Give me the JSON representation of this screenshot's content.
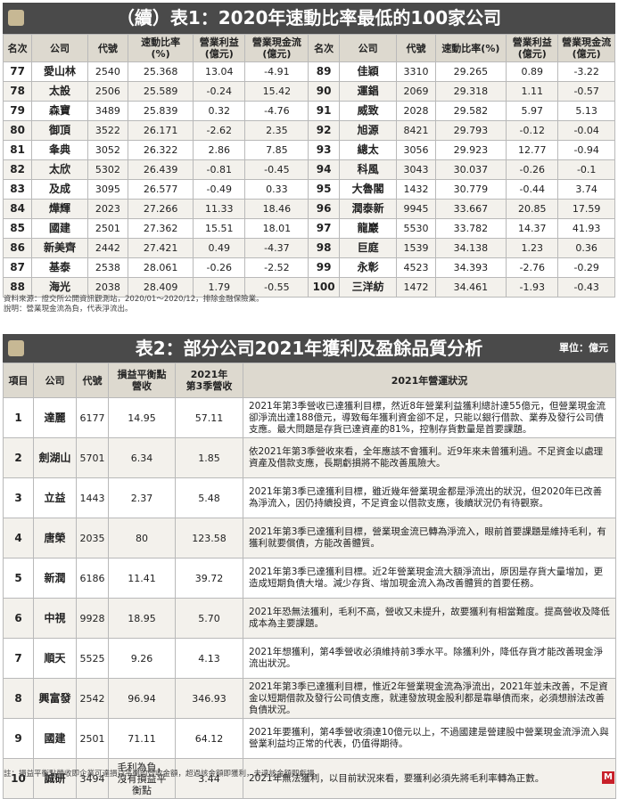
{
  "table1": {
    "title": "（續）表1：2020年速動比率最低的100家公司",
    "headers": [
      "名次",
      "公司",
      "代號",
      "速動比率\n(%)",
      "營業利益\n(億元)",
      "營業現金流\n(億元)",
      "名次",
      "公司",
      "代號",
      "速動比率(%)",
      "營業利益\n(億元)",
      "營業現金流\n(億元)"
    ],
    "rows": [
      [
        "77",
        "愛山林",
        "2540",
        "25.368",
        "13.04",
        "-4.91",
        "89",
        "佳穎",
        "3310",
        "29.265",
        "0.89",
        "-3.22"
      ],
      [
        "78",
        "太設",
        "2506",
        "25.589",
        "-0.24",
        "15.42",
        "90",
        "運錩",
        "2069",
        "29.318",
        "1.11",
        "-0.57"
      ],
      [
        "79",
        "森寶",
        "3489",
        "25.839",
        "0.32",
        "-4.76",
        "91",
        "威致",
        "2028",
        "29.582",
        "5.97",
        "5.13"
      ],
      [
        "80",
        "御頂",
        "3522",
        "26.171",
        "-2.62",
        "2.35",
        "92",
        "旭源",
        "8421",
        "29.793",
        "-0.12",
        "-0.04"
      ],
      [
        "81",
        "夆典",
        "3052",
        "26.322",
        "2.86",
        "7.85",
        "93",
        "總太",
        "3056",
        "29.923",
        "12.77",
        "-0.94"
      ],
      [
        "82",
        "太欣",
        "5302",
        "26.439",
        "-0.81",
        "-0.45",
        "94",
        "科風",
        "3043",
        "30.037",
        "-0.26",
        "-0.1"
      ],
      [
        "83",
        "及成",
        "3095",
        "26.577",
        "-0.49",
        "0.33",
        "95",
        "大魯閣",
        "1432",
        "30.779",
        "-0.44",
        "3.74"
      ],
      [
        "84",
        "燁輝",
        "2023",
        "27.266",
        "11.33",
        "18.46",
        "96",
        "潤泰新",
        "9945",
        "33.667",
        "20.85",
        "17.59"
      ],
      [
        "85",
        "國建",
        "2501",
        "27.362",
        "15.51",
        "18.01",
        "97",
        "龍巖",
        "5530",
        "33.782",
        "14.37",
        "41.93"
      ],
      [
        "86",
        "新美齊",
        "2442",
        "27.421",
        "0.49",
        "-4.37",
        "98",
        "巨庭",
        "1539",
        "34.138",
        "1.23",
        "0.36"
      ],
      [
        "87",
        "基泰",
        "2538",
        "28.061",
        "-0.26",
        "-2.52",
        "99",
        "永彰",
        "4523",
        "34.393",
        "-2.76",
        "-0.29"
      ],
      [
        "88",
        "海光",
        "2038",
        "28.409",
        "1.79",
        "-0.55",
        "100",
        "三洋紡",
        "1472",
        "34.461",
        "-1.93",
        "-0.43"
      ]
    ],
    "source": "資料來源：證交所公開資訊觀測站，2020/01～2020/12，排除金融保險業。",
    "explain": "說明：營業現金流為負，代表淨流出。"
  },
  "table2": {
    "title": "表2：部分公司2021年獲利及盈餘品質分析",
    "unit": "單位：億元",
    "headers": [
      "項目",
      "公司",
      "代號",
      "損益平衡點\n營收",
      "2021年\n第3季營收",
      "2021年營運狀況"
    ],
    "rows": [
      [
        "1",
        "達麗",
        "6177",
        "14.95",
        "57.11",
        "2021年第3季營收已達獲利目標，然近8年營業利益獲利總計達55億元，但營業現金流卻淨流出達188億元，導致每年獲利資金卻不足，只能以銀行借款、業券及發行公司債支應。最大問題是存貨已達資產的81%，控制存貨數量是首要課題。"
      ],
      [
        "2",
        "劍湖山",
        "5701",
        "6.34",
        "1.85",
        "依2021年第3季營收來看，全年應該不會獲利。近9年來未曾獲利過。不足資金以處理資產及借款支應，長期虧損將不能改善風險大。"
      ],
      [
        "3",
        "立益",
        "1443",
        "2.37",
        "5.48",
        "2021年第3季已達獲利目標，雖近幾年營業現金都是淨流出的狀況，但2020年已改善為淨流入，因仍持續投資，不足資金以借款支應，後續狀況仍有待觀察。"
      ],
      [
        "4",
        "唐榮",
        "2035",
        "80",
        "123.58",
        "2021年第3季已達獲利目標，營業現金流已轉為淨流入，眼前首要課題是維持毛利，有獲利就要償債，方能改善體質。"
      ],
      [
        "5",
        "新潤",
        "6186",
        "11.41",
        "39.72",
        "2021年第3季已達獲利目標。近2年營業現金流大額淨流出，原因是存貨大量增加，更造成短期負債大增。減少存貨、增加現金流入為改善體質的首要任務。"
      ],
      [
        "6",
        "中視",
        "9928",
        "18.95",
        "5.70",
        "2021年恐無法獲利，毛利不高，營收又未提升，故要獲利有相當難度。提高營收及降低成本為主要課題。"
      ],
      [
        "7",
        "順天",
        "5525",
        "9.26",
        "4.13",
        "2021年想獲利，第4季營收必須維持前3季水平。除獲利外，降低存貨才能改善現金淨流出狀況。"
      ],
      [
        "8",
        "興富發",
        "2542",
        "96.94",
        "346.93",
        "2021年第3季已達獲利目標，惟近2年營業現金流為淨流出，2021年並未改善，不足資金以短期借款及發行公司債支應，就連發放現金股利都是靠舉債而來，必須想辦法改善負債狀況。"
      ],
      [
        "9",
        "國建",
        "2501",
        "71.11",
        "64.12",
        "2021年要獲利，第4季營收須達10億元以上，不過國建是營建股中營業現金流淨流入與營業利益均正常的代表，仍值得期待。"
      ],
      [
        "10",
        "誠研",
        "3494",
        "毛利為負，\n沒有損益平\n衡點",
        "3.44",
        "2021年無法獲利，以目前狀況來看，要獲利必須先將毛利率轉為正數。"
      ]
    ],
    "footnote": "註：損益平衡點營收即企業可達損益平衡的營收金額，超過該金額即獲利，未達該金額即虧損。"
  },
  "logo_text": "M"
}
